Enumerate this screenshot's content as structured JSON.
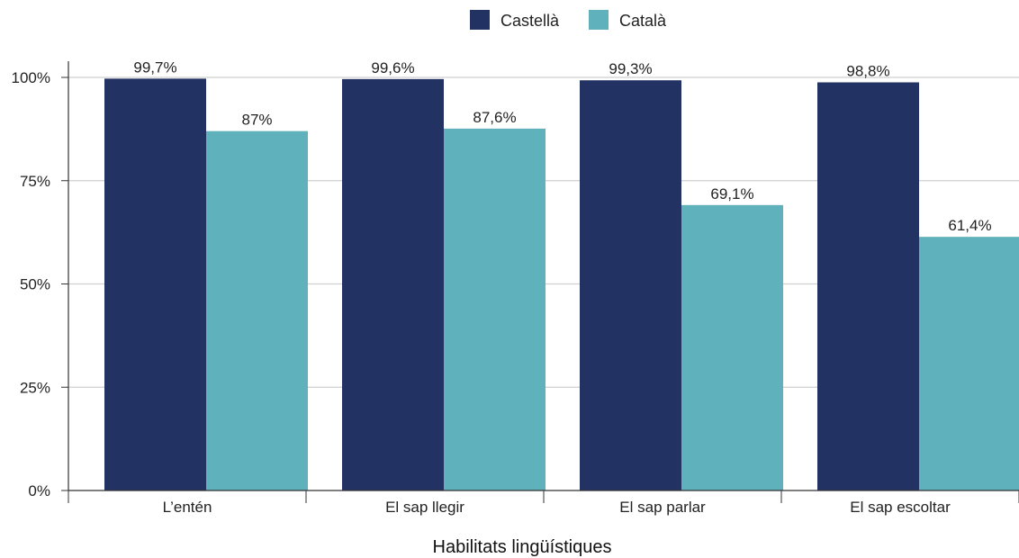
{
  "chart_data": {
    "type": "bar",
    "categories": [
      "L’entén",
      "El sap llegir",
      "El sap parlar",
      "El sap escoltar"
    ],
    "series": [
      {
        "name": "Castellà",
        "color": "#223262",
        "values": [
          99.7,
          99.6,
          99.3,
          98.8
        ],
        "labels": [
          "99,7%",
          "99,6%",
          "99,3%",
          "98,8%"
        ]
      },
      {
        "name": "Català",
        "color": "#5fb1bb",
        "values": [
          87,
          87.6,
          69.1,
          61.4
        ],
        "labels": [
          "87%",
          "87,6%",
          "69,1%",
          "61,4%"
        ]
      }
    ],
    "xlabel": "Habilitats lingüístiques",
    "ylabel": "",
    "ylim": [
      0,
      100
    ],
    "yticks": [
      0,
      25,
      50,
      75,
      100
    ],
    "ytick_labels": [
      "0%",
      "25%",
      "50%",
      "75%",
      "100%"
    ],
    "grid": true,
    "legend_position": "top-center"
  }
}
